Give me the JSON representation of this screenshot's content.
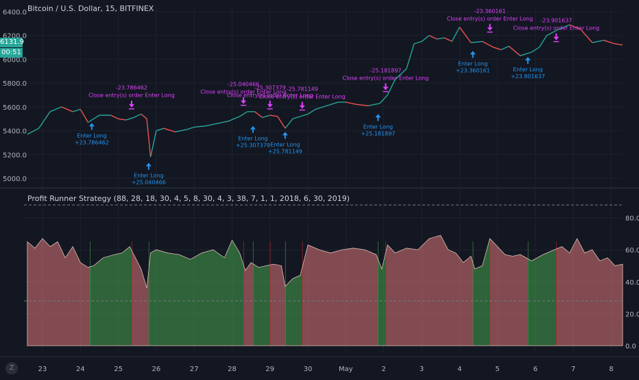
{
  "header": {
    "title": "Bitcoin / U.S. Dollar, 15, BITFINEX",
    "indicator_title": "Profit Runner Strategy (88, 28, 18, 30, 4, 5, 8, 30, 4, 3, 38, 7, 1, 1, 2018, 6, 30, 2019)"
  },
  "price_badge": {
    "price": "6131.9",
    "countdown": "00:51"
  },
  "zoom_button": "Z",
  "colors": {
    "background": "#131722",
    "grid": "#1e222d",
    "candle_up": "#26a69a",
    "candle_down": "#ef5350",
    "entry_signal": "#2196f3",
    "exit_signal": "#e040fb",
    "fill_profit": "#4caf50",
    "fill_loss": "#f08080"
  },
  "chart_data": [
    {
      "type": "line",
      "title": "Bitcoin / U.S. Dollar, 15, BITFINEX",
      "y_axis_side": "left",
      "ylim": [
        4900,
        6450
      ],
      "y_ticks": [
        "6400.0",
        "6200.0",
        "6000.0",
        "5800.0",
        "5600.0",
        "5400.0",
        "5200.0",
        "5000.0"
      ],
      "x_ticks": [
        "23",
        "24",
        "25",
        "26",
        "27",
        "28",
        "29",
        "30",
        "May",
        "2",
        "3",
        "4",
        "5",
        "6",
        "7",
        "8"
      ],
      "series": [
        {
          "x": [
            22.6,
            22.9,
            23.2,
            23.5,
            23.8,
            24.0,
            24.2,
            24.35,
            24.5,
            24.8,
            25.0,
            25.2,
            25.4,
            25.6,
            25.75,
            25.85,
            26.0,
            26.2,
            26.5,
            26.8,
            27.0,
            27.3,
            27.6,
            27.9,
            28.2,
            28.4,
            28.6,
            28.8,
            29.0,
            29.2,
            29.4,
            29.6,
            29.8,
            30.0,
            30.2,
            30.5,
            30.8,
            31.0,
            31.3,
            31.6,
            31.9,
            32.1,
            32.3,
            32.6,
            32.8,
            33.0,
            33.2,
            33.4,
            33.6,
            33.8,
            34.0,
            34.3,
            34.6,
            34.9,
            35.1,
            35.3,
            35.6,
            35.9,
            36.1,
            36.3,
            36.6,
            36.9,
            37.2,
            37.5,
            37.8,
            38.1,
            38.3
          ],
          "values": [
            5370,
            5420,
            5560,
            5600,
            5560,
            5580,
            5470,
            5500,
            5530,
            5530,
            5500,
            5490,
            5510,
            5540,
            5500,
            5180,
            5400,
            5420,
            5390,
            5410,
            5430,
            5440,
            5460,
            5480,
            5520,
            5560,
            5560,
            5510,
            5530,
            5520,
            5420,
            5500,
            5520,
            5540,
            5580,
            5610,
            5640,
            5640,
            5620,
            5610,
            5630,
            5700,
            5830,
            5920,
            6130,
            6150,
            6200,
            6170,
            6180,
            6150,
            6270,
            6140,
            6150,
            6100,
            6080,
            6110,
            6030,
            6060,
            6100,
            6200,
            6250,
            6290,
            6250,
            6140,
            6160,
            6130,
            6120
          ]
        }
      ],
      "annotations": [
        {
          "kind": "entry",
          "x": 24.3,
          "price": 5465,
          "text": [
            "Enter Long",
            "+23.786462"
          ]
        },
        {
          "kind": "exit",
          "x": 25.35,
          "price": 5595,
          "text": [
            "-23.786462",
            "Close entry(s) order Enter Long"
          ]
        },
        {
          "kind": "entry",
          "x": 25.8,
          "price": 5130,
          "text": [
            "Enter Long",
            "+25.040466"
          ]
        },
        {
          "kind": "exit",
          "x": 28.3,
          "price": 5625,
          "text": [
            "-25.040466",
            "Close entry(s) order Enter Long"
          ]
        },
        {
          "kind": "entry",
          "x": 28.55,
          "price": 5440,
          "text": [
            "Enter Long",
            "+25.307379"
          ]
        },
        {
          "kind": "exit",
          "x": 29.0,
          "price": 5595,
          "text": [
            "-25.307379",
            "Close entry(s) order Enter Long"
          ]
        },
        {
          "kind": "entry",
          "x": 29.4,
          "price": 5390,
          "text": [
            "Enter Long",
            "+25.781149"
          ]
        },
        {
          "kind": "exit",
          "x": 29.85,
          "price": 5585,
          "text": [
            "-25.781149",
            "Close entry(s) order Enter Long"
          ]
        },
        {
          "kind": "entry",
          "x": 31.85,
          "price": 5540,
          "text": [
            "Enter Long",
            "+25.181897"
          ]
        },
        {
          "kind": "exit",
          "x": 32.05,
          "price": 5740,
          "text": [
            "-25.181897",
            "Close entry(s) order Enter Long"
          ]
        },
        {
          "kind": "entry",
          "x": 34.35,
          "price": 6070,
          "text": [
            "Enter Long",
            "+23.360161"
          ]
        },
        {
          "kind": "exit",
          "x": 34.8,
          "price": 6240,
          "text": [
            "-23.360161",
            "Close entry(s) order Enter Long"
          ]
        },
        {
          "kind": "entry",
          "x": 35.8,
          "price": 6020,
          "text": [
            "Enter Long",
            "+23.901637"
          ]
        },
        {
          "kind": "exit",
          "x": 36.55,
          "price": 6160,
          "text": [
            "-23.901637",
            "Close entry(s) order Enter Long"
          ]
        }
      ]
    },
    {
      "type": "area",
      "title": "Profit Runner Strategy (88, 28, 18, 30, 4, 5, 8, 30, 4, 3, 38, 7, 1, 1, 2018, 6, 30, 2019)",
      "y_axis_side": "right",
      "ylim": [
        -2,
        92
      ],
      "y_ticks": [
        "80.0",
        "60.0",
        "40.0",
        "20.0",
        "0.0"
      ],
      "h_levels": [
        88,
        28
      ],
      "series": [
        {
          "x": [
            22.6,
            22.8,
            23.0,
            23.2,
            23.4,
            23.6,
            23.8,
            24.0,
            24.2,
            24.35,
            24.6,
            24.9,
            25.1,
            25.3,
            25.45,
            25.6,
            25.75,
            25.85,
            26.0,
            26.3,
            26.6,
            26.9,
            27.2,
            27.5,
            27.8,
            28.0,
            28.2,
            28.35,
            28.5,
            28.7,
            28.9,
            29.1,
            29.3,
            29.4,
            29.6,
            29.8,
            30.0,
            30.3,
            30.6,
            30.9,
            31.2,
            31.5,
            31.8,
            31.95,
            32.1,
            32.3,
            32.6,
            32.9,
            33.2,
            33.5,
            33.7,
            33.9,
            34.1,
            34.3,
            34.4,
            34.6,
            34.8,
            35.0,
            35.2,
            35.4,
            35.6,
            35.9,
            36.2,
            36.5,
            36.7,
            36.9,
            37.1,
            37.3,
            37.5,
            37.7,
            37.9,
            38.1,
            38.3
          ],
          "values": [
            65,
            61,
            67,
            62,
            65,
            55,
            62,
            52,
            49,
            50,
            55,
            57,
            58,
            62,
            55,
            48,
            36,
            58,
            60,
            58,
            57,
            54,
            58,
            60,
            55,
            66,
            58,
            47,
            52,
            49,
            50,
            51,
            50,
            37,
            42,
            44,
            63,
            60,
            58,
            60,
            61,
            60,
            57,
            48,
            63,
            58,
            61,
            60,
            67,
            69,
            60,
            58,
            52,
            56,
            48,
            50,
            67,
            62,
            57,
            56,
            57,
            53,
            57,
            60,
            62,
            58,
            67,
            58,
            60,
            53,
            55,
            50,
            51
          ]
        }
      ],
      "regions": [
        {
          "from": 22.6,
          "to": 24.25,
          "state": "loss"
        },
        {
          "from": 24.25,
          "to": 25.35,
          "state": "profit"
        },
        {
          "from": 25.35,
          "to": 25.8,
          "state": "loss"
        },
        {
          "from": 25.8,
          "to": 28.3,
          "state": "profit"
        },
        {
          "from": 28.3,
          "to": 28.55,
          "state": "loss"
        },
        {
          "from": 28.55,
          "to": 29.0,
          "state": "profit"
        },
        {
          "from": 29.0,
          "to": 29.4,
          "state": "loss"
        },
        {
          "from": 29.4,
          "to": 29.85,
          "state": "profit"
        },
        {
          "from": 29.85,
          "to": 31.85,
          "state": "loss"
        },
        {
          "from": 31.85,
          "to": 32.05,
          "state": "profit"
        },
        {
          "from": 32.05,
          "to": 34.35,
          "state": "loss"
        },
        {
          "from": 34.35,
          "to": 34.8,
          "state": "profit"
        },
        {
          "from": 34.8,
          "to": 35.8,
          "state": "loss"
        },
        {
          "from": 35.8,
          "to": 36.55,
          "state": "profit"
        },
        {
          "from": 36.55,
          "to": 38.3,
          "state": "loss"
        }
      ]
    }
  ]
}
